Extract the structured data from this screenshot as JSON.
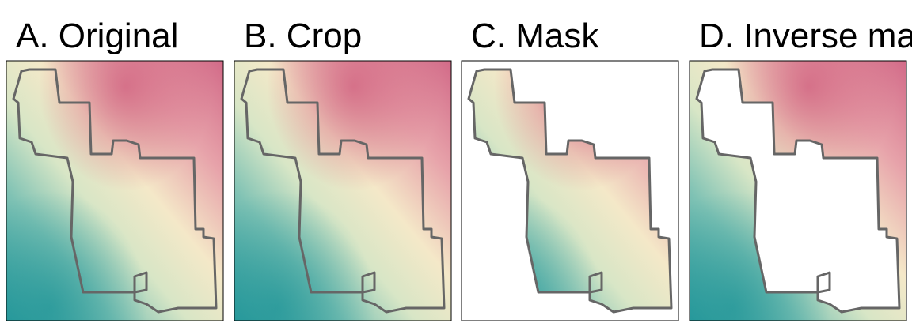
{
  "panels": [
    {
      "title": "A. Original"
    },
    {
      "title": "B. Crop"
    },
    {
      "title": "C. Mask"
    },
    {
      "title": "D. Inverse mask"
    }
  ]
}
